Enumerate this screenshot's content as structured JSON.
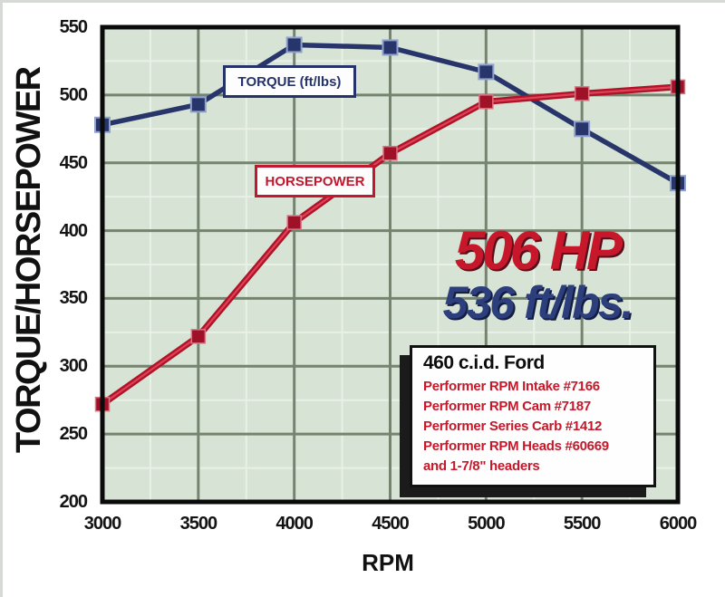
{
  "axis": {
    "y_title": "TORQUE/HORSEPOWER",
    "x_title": "RPM"
  },
  "annotations": {
    "hp_peak": "506 HP",
    "torque_peak": "536 ft/lbs."
  },
  "info_box": {
    "title": "460 c.i.d. Ford",
    "lines": [
      "Performer RPM Intake #7166",
      "Performer RPM Cam #7187",
      "Performer Series Carb #1412",
      "Performer RPM Heads #60669",
      "and 1-7/8\" headers"
    ]
  },
  "chart_data": {
    "type": "line",
    "title": "",
    "xlabel": "RPM",
    "ylabel": "TORQUE/HORSEPOWER",
    "x": [
      3000,
      3500,
      4000,
      4500,
      5000,
      5500,
      6000
    ],
    "x_ticks": [
      "3000",
      "3500",
      "4000",
      "4500",
      "5000",
      "5500",
      "6000"
    ],
    "y_ticks": [
      "200",
      "250",
      "300",
      "350",
      "400",
      "450",
      "500",
      "550"
    ],
    "xlim": [
      3000,
      6000
    ],
    "ylim": [
      200,
      550
    ],
    "grid": true,
    "legend_position": "in-plot label boxes",
    "series": [
      {
        "name": "TORQUE (ft/lbs)",
        "color": "#27356b",
        "marker": "square",
        "values": [
          478,
          493,
          537,
          535,
          517,
          475,
          435
        ]
      },
      {
        "name": "HORSEPOWER",
        "color": "#c2182f",
        "marker": "square",
        "values": [
          272,
          322,
          406,
          457,
          495,
          501,
          506
        ]
      }
    ]
  },
  "colors": {
    "plot_bg": "#d7e3d5",
    "grid_major": "#75846f",
    "grid_minor": "#e9f1e7",
    "axis_border": "#0a0a0a",
    "torque_blue": "#27356b",
    "hp_red": "#c2182f",
    "peak_hp_text": "#c6182a",
    "peak_torque_text": "#2c3f7c"
  }
}
